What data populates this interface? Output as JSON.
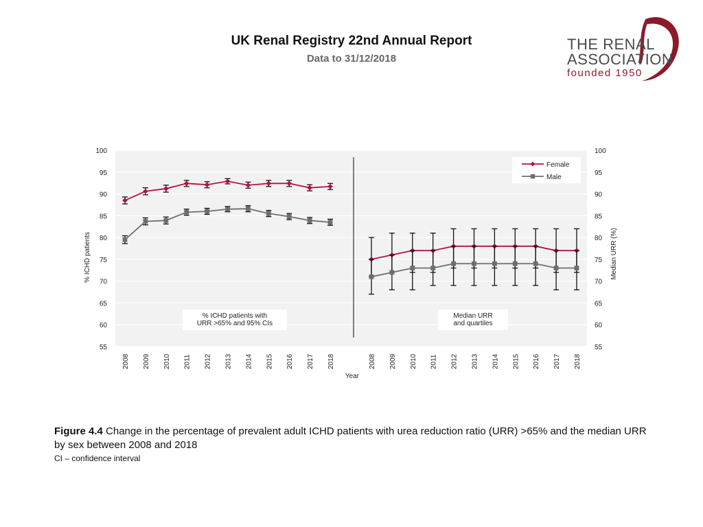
{
  "header": {
    "title": "UK Renal Registry 22nd Annual Report",
    "subtitle": "Data to 31/12/2018"
  },
  "logo": {
    "line1": "THE RENAL",
    "line2": "ASSOCIATION",
    "line3": "founded 1950",
    "color": "#8b1a2b"
  },
  "colors": {
    "female": "#b3123e",
    "male": "#6e6e6e",
    "grid": "#dcdcdc",
    "panel_bg": "#f2f2f2"
  },
  "chart_data": {
    "type": "line",
    "xlabel": "Year",
    "ylabel_left": "% ICHD patients",
    "ylabel_right": "Median URR (%)",
    "ylim": [
      55,
      100
    ],
    "yticks": [
      55,
      60,
      65,
      70,
      75,
      80,
      85,
      90,
      95,
      100
    ],
    "legend": [
      "Female",
      "Male"
    ],
    "legend_position": "top-right",
    "panels": [
      {
        "annotation": [
          "% ICHD patients with",
          "URR >65% and 95% CIs"
        ],
        "categories": [
          "2008",
          "2009",
          "2010",
          "2011",
          "2012",
          "2013",
          "2014",
          "2015",
          "2016",
          "2017",
          "2018"
        ],
        "series": [
          {
            "name": "Female",
            "values": [
              88.5,
              90.6,
              91.2,
              92.4,
              92.1,
              92.9,
              92.0,
              92.4,
              92.4,
              91.4,
              91.7
            ],
            "lower": [
              87.7,
              89.8,
              90.4,
              91.7,
              91.4,
              92.3,
              91.3,
              91.7,
              91.7,
              90.7,
              91.0
            ],
            "upper": [
              89.3,
              91.4,
              92.0,
              93.1,
              92.8,
              93.5,
              92.7,
              93.1,
              93.1,
              92.1,
              92.4
            ]
          },
          {
            "name": "Male",
            "values": [
              79.5,
              83.7,
              83.9,
              85.8,
              86.0,
              86.5,
              86.6,
              85.5,
              84.8,
              83.9,
              83.5
            ],
            "lower": [
              78.6,
              82.9,
              83.1,
              85.1,
              85.3,
              85.9,
              85.9,
              84.8,
              84.1,
              83.2,
              82.8
            ],
            "upper": [
              80.4,
              84.5,
              84.7,
              86.5,
              86.7,
              87.1,
              87.3,
              86.2,
              85.5,
              84.6,
              84.2
            ]
          }
        ]
      },
      {
        "annotation": [
          "Median URR",
          "and quartiles"
        ],
        "categories": [
          "2008",
          "2009",
          "2010",
          "2011",
          "2012",
          "2013",
          "2014",
          "2015",
          "2016",
          "2017",
          "2018"
        ],
        "series": [
          {
            "name": "Female",
            "values": [
              75,
              76,
              77,
              77,
              78,
              78,
              78,
              78,
              78,
              77,
              77
            ],
            "lower": [
              71,
              72,
              72,
              72,
              73,
              73,
              73,
              73,
              73,
              72,
              72
            ],
            "upper": [
              80,
              81,
              81,
              81,
              82,
              82,
              82,
              82,
              82,
              82,
              82
            ]
          },
          {
            "name": "Male",
            "values": [
              71,
              72,
              73,
              73,
              74,
              74,
              74,
              74,
              74,
              73,
              73
            ],
            "lower": [
              67,
              68,
              68,
              69,
              69,
              69,
              69,
              69,
              69,
              68,
              68
            ],
            "upper": [
              75,
              76,
              77,
              77,
              78,
              78,
              78,
              78,
              78,
              77,
              77
            ]
          }
        ]
      }
    ]
  },
  "caption": {
    "label": "Figure 4.4",
    "text": " Change in the percentage of prevalent adult ICHD patients with urea reduction ratio (URR) >65% and the median URR by sex between 2008 and 2018",
    "footnote": "CI – confidence interval"
  }
}
